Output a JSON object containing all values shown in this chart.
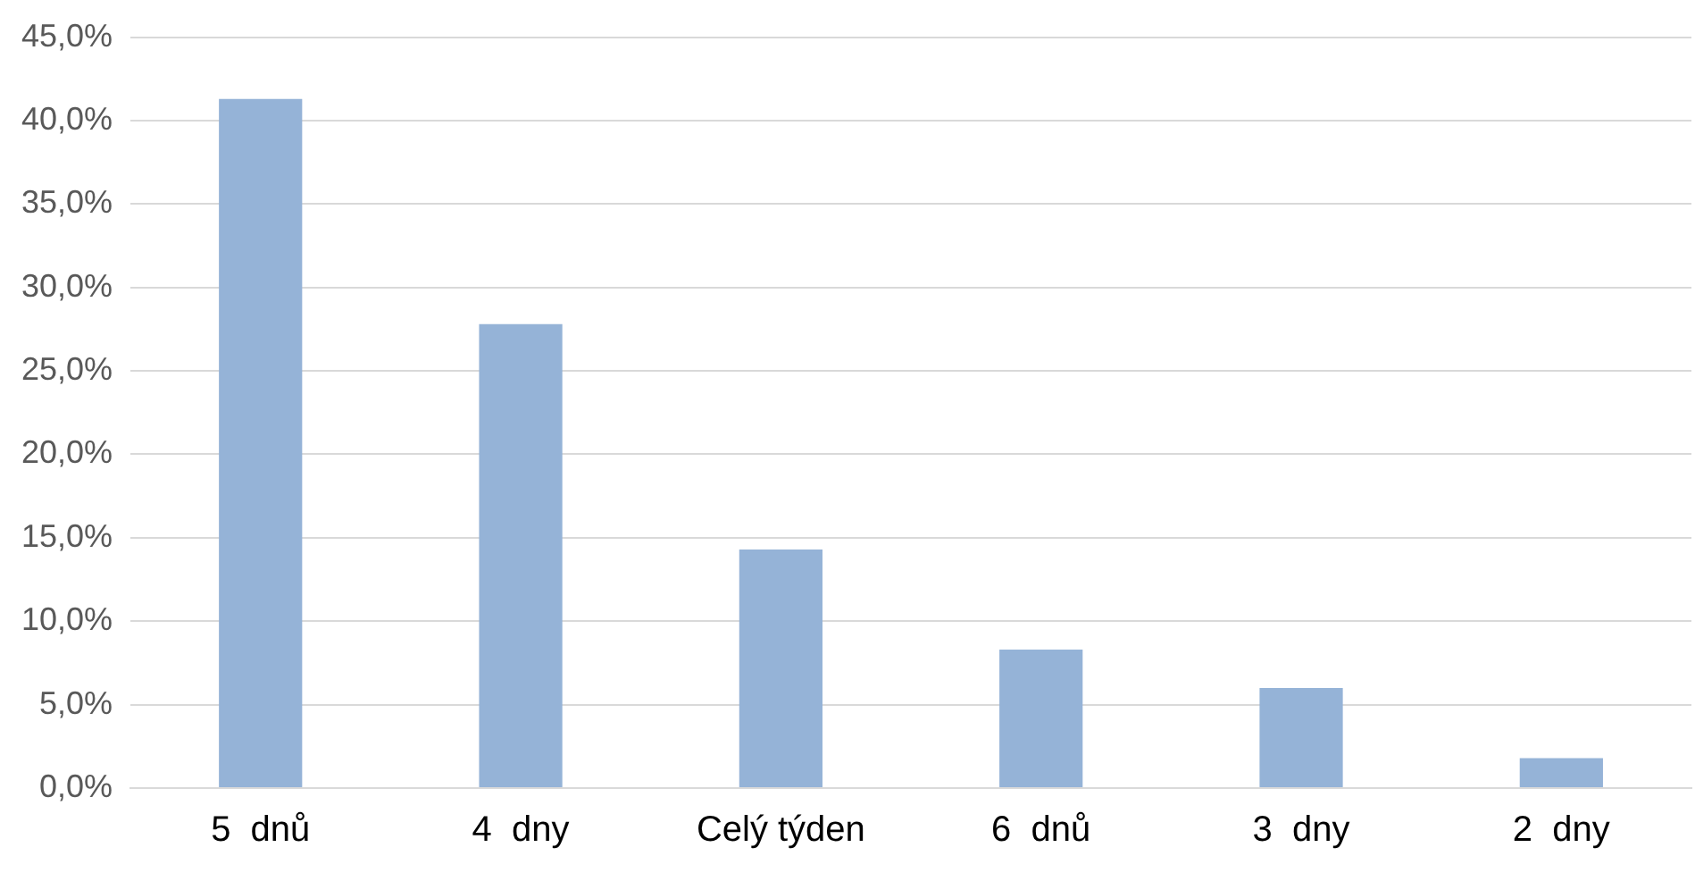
{
  "chart_data": {
    "type": "bar",
    "categories": [
      "5  dnů",
      "4  dny",
      "Celý týden",
      "6  dnů",
      "3  dny",
      "2  dny"
    ],
    "values": [
      41.3,
      27.8,
      14.3,
      8.3,
      6.0,
      1.8
    ],
    "color": "#95b3d7",
    "ylim": [
      0,
      45
    ],
    "yticks": [
      {
        "value": 0,
        "label": "0,0%"
      },
      {
        "value": 5,
        "label": "5,0%"
      },
      {
        "value": 10,
        "label": "10,0%"
      },
      {
        "value": 15,
        "label": "15,0%"
      },
      {
        "value": 20,
        "label": "20,0%"
      },
      {
        "value": 25,
        "label": "25,0%"
      },
      {
        "value": 30,
        "label": "30,0%"
      },
      {
        "value": 35,
        "label": "35,0%"
      },
      {
        "value": 40,
        "label": "40,0%"
      },
      {
        "value": 45,
        "label": "45,0%"
      }
    ],
    "grid": "y"
  }
}
